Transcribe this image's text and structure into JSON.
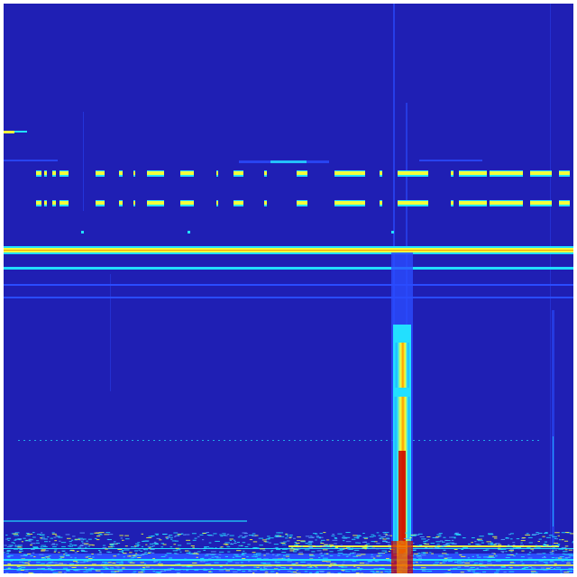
{
  "image": {
    "kind": "spectrogram",
    "colormap": "jet",
    "colors": {
      "background": "#1f1fb4",
      "blue_light": "#2a4cff",
      "cyan": "#22e0ff",
      "yellow": "#f4ff3a",
      "orange": "#ff9a00",
      "red": "#c80000",
      "frame": "#ffffff"
    }
  }
}
